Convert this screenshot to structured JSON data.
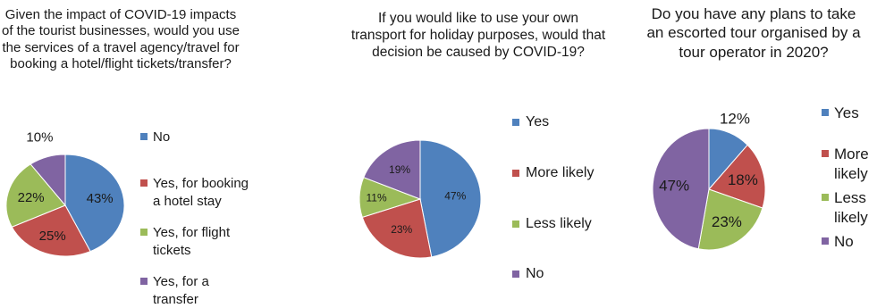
{
  "colors": {
    "blue": "#4F81BD",
    "red": "#C0504D",
    "green": "#9BBB59",
    "purple": "#8064A2"
  },
  "chart_data": [
    {
      "type": "pie",
      "title": "Given the impact of COVID-19 impacts of the tourist businesses, would you use the services of a travel agency/travel for booking a hotel/flight tickets/transfer?",
      "categories": [
        "No",
        "Yes, for booking a hotel stay",
        "Yes, for flight tickets",
        "Yes, for a transfer"
      ],
      "values": [
        43,
        25,
        22,
        10
      ],
      "labels": [
        "43%",
        "25%",
        "22%",
        "10%"
      ],
      "legend_position": "right"
    },
    {
      "type": "pie",
      "title": "If you would like to use your own transport for holiday purposes, would that decision be caused by COVID-19?",
      "categories": [
        "Yes",
        "More likely",
        "Less likely",
        "No"
      ],
      "values": [
        47,
        23,
        11,
        19
      ],
      "labels": [
        "47%",
        "23%",
        "11%",
        "19%"
      ],
      "legend_position": "right"
    },
    {
      "type": "pie",
      "title": "Do you have any plans to take an escorted tour organised by a tour operator in 2020?",
      "categories": [
        "Yes",
        "More likely",
        "Less likely",
        "No"
      ],
      "values": [
        12,
        18,
        23,
        47
      ],
      "labels": [
        "12%",
        "18%",
        "23%",
        "47%"
      ],
      "legend_position": "right"
    }
  ]
}
